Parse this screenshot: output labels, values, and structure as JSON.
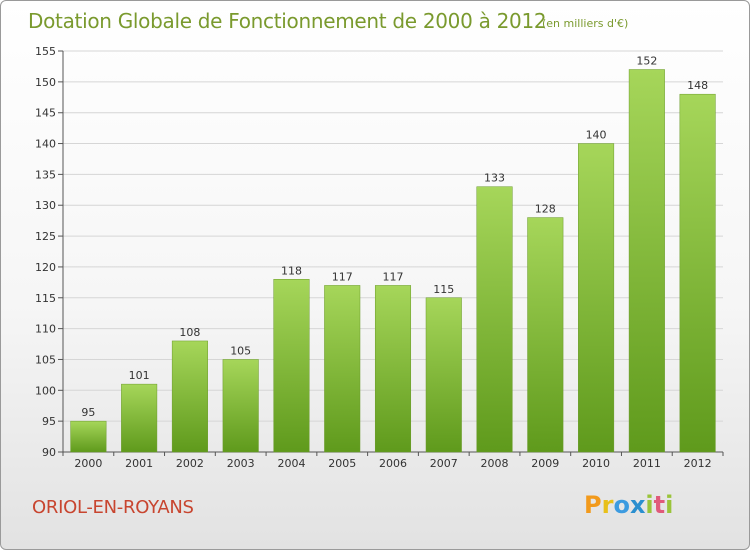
{
  "title": "Dotation Globale de Fonctionnement de 2000 à 2012",
  "unit_note": "(en milliers d'€)",
  "commune": "ORIOL-EN-ROYANS",
  "logo": {
    "letters": [
      "P",
      "r",
      "o",
      "x",
      "i",
      "t",
      "i"
    ],
    "colors": [
      "#f29a1c",
      "#e8c01a",
      "#3c9be0",
      "#2a8fcf",
      "#9ac43a",
      "#e05a7a",
      "#9ac43a"
    ]
  },
  "colors": {
    "bar_top": "#a6d65a",
    "bar_bottom": "#5f9a1c",
    "title": "#7a9a2e",
    "commune": "#c8452f"
  },
  "chart_data": {
    "type": "bar",
    "title": "Dotation Globale de Fonctionnement de 2000 à 2012",
    "subtitle": "(en milliers d'€)",
    "xlabel": "",
    "ylabel": "",
    "categories": [
      "2000",
      "2001",
      "2002",
      "2003",
      "2004",
      "2005",
      "2006",
      "2007",
      "2008",
      "2009",
      "2010",
      "2011",
      "2012"
    ],
    "values": [
      95,
      101,
      108,
      105,
      118,
      117,
      117,
      115,
      133,
      128,
      140,
      152,
      148
    ],
    "ylim": [
      90,
      155
    ],
    "yticks": [
      90,
      95,
      100,
      105,
      110,
      115,
      120,
      125,
      130,
      135,
      140,
      145,
      150,
      155
    ],
    "grid": true,
    "legend": "none"
  }
}
